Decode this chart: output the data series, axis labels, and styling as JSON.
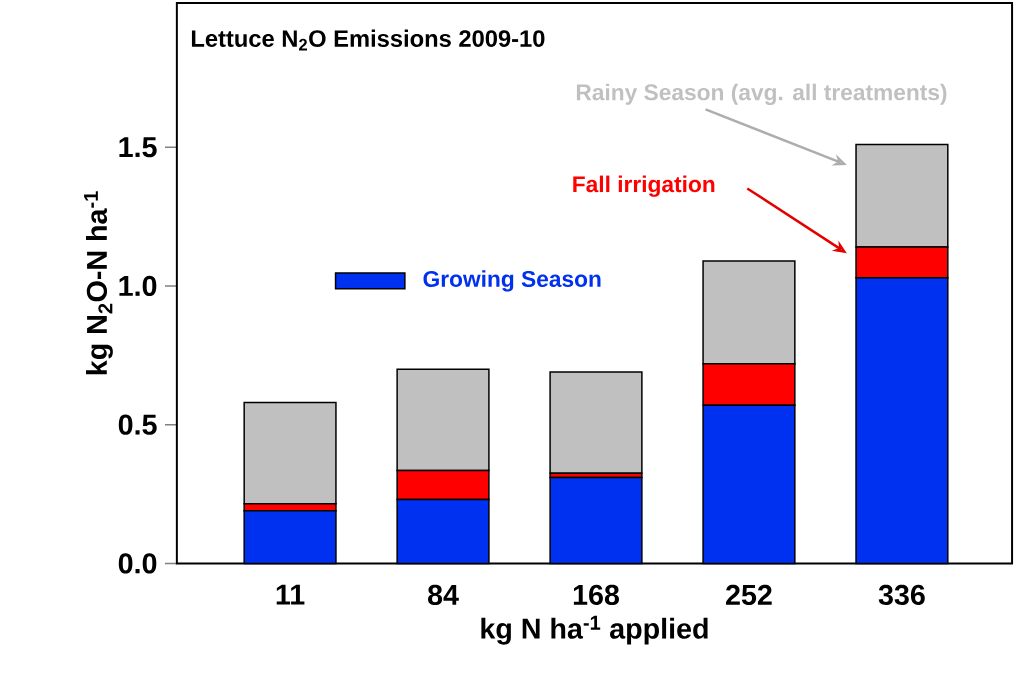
{
  "chart_data": {
    "type": "bar",
    "stacked": true,
    "title": "Lettuce N$_{2}$O Emissions 2009-10",
    "xlabel": "kg N ha$^{-1}$ applied",
    "ylabel": "kg N$_{2}$O-N ha$^{-1}$",
    "categories": [
      "11",
      "84",
      "168",
      "252",
      "336"
    ],
    "series": [
      {
        "name": "Growing Season",
        "color": "#0030f0",
        "values": [
          0.19,
          0.23,
          0.31,
          0.57,
          1.03
        ]
      },
      {
        "name": "Fall irrigation",
        "color": "#ff0000",
        "values": [
          0.025,
          0.105,
          0.015,
          0.15,
          0.11
        ]
      },
      {
        "name": "Rainy Season (avg. all treatments)",
        "color": "#c0c0c0",
        "values": [
          0.365,
          0.365,
          0.365,
          0.37,
          0.37
        ]
      }
    ],
    "ylim": [
      0,
      2.02
    ],
    "yticks": [
      {
        "value": 0,
        "label": "0.0"
      },
      0.5,
      {
        "value": 1,
        "label": "1.0"
      },
      1.5
    ],
    "legend": "left"
  }
}
